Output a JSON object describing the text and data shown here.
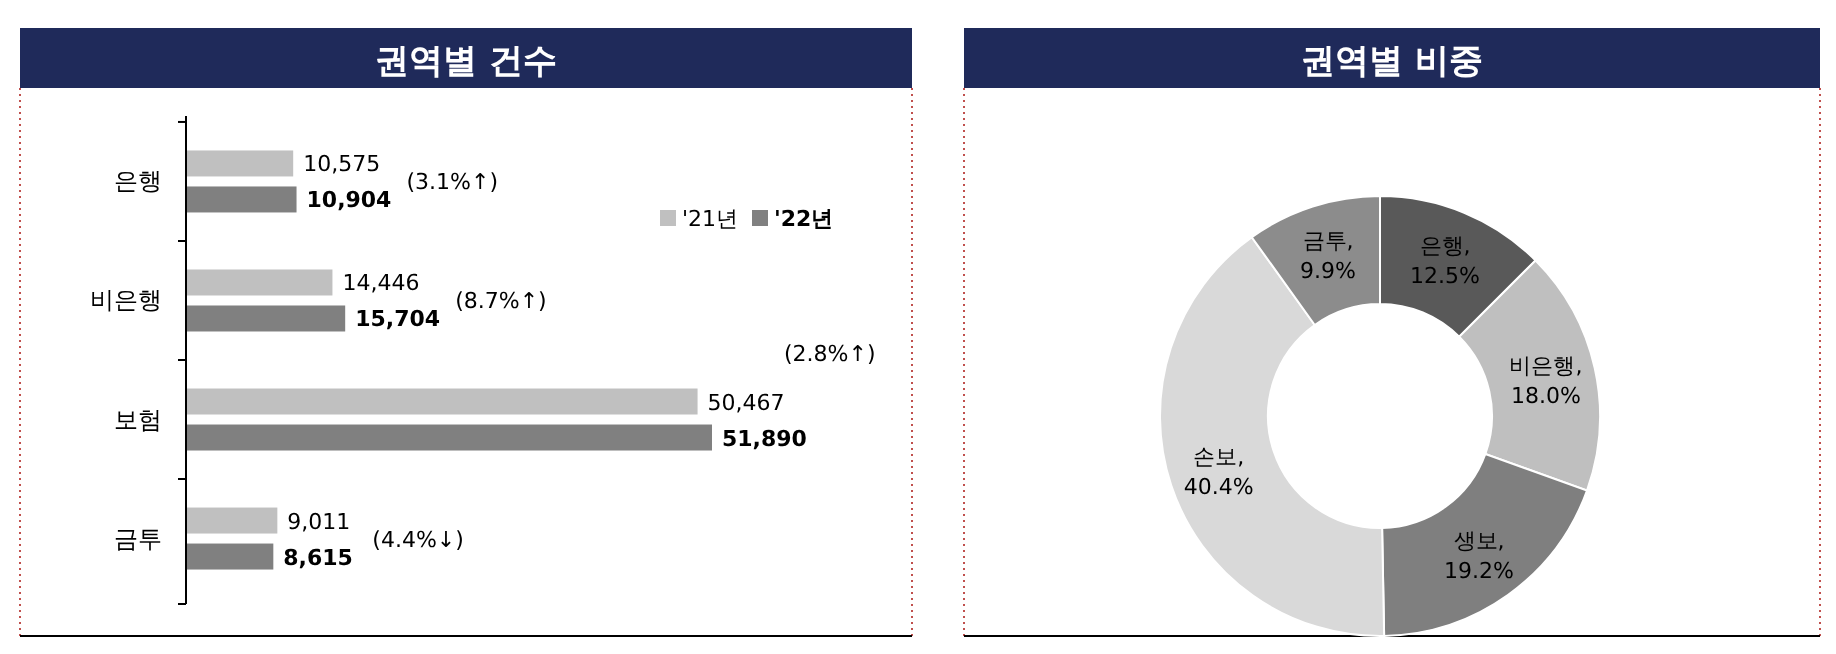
{
  "chart_data": [
    {
      "type": "bar",
      "orientation": "horizontal",
      "title": "권역별 건수",
      "categories": [
        "은행",
        "비은행",
        "보험",
        "금투"
      ],
      "series": [
        {
          "name": "'21년",
          "color": "#c0c0c0",
          "values": [
            10575,
            14446,
            50467,
            9011
          ],
          "value_labels": [
            "10,575",
            "14,446",
            "50,467",
            "9,011"
          ]
        },
        {
          "name": "'22년",
          "color": "#808080",
          "values": [
            10904,
            15704,
            51890,
            8615
          ],
          "value_labels": [
            "10,904",
            "15,704",
            "51,890",
            "8,615"
          ]
        }
      ],
      "legend": "top right",
      "annotations": [
        "(3.1%↑)",
        "(8.7%↑)",
        "(2.8%↑)",
        "(4.4%↓)"
      ]
    },
    {
      "type": "donut",
      "title": "권역별 비중",
      "categories": [
        "은행",
        "비은행",
        "생보",
        "손보",
        "금투"
      ],
      "values": [
        12.5,
        18.0,
        19.2,
        40.4,
        9.9
      ],
      "colors": [
        "#595959",
        "#bfbfbf",
        "#7f7f7f",
        "#d9d9d9",
        "#8c8c8c"
      ],
      "value_labels": [
        ", 12.5%",
        ", 18.0%",
        ", 19.2%",
        ", 40.4%",
        ", 9.9%"
      ]
    }
  ]
}
